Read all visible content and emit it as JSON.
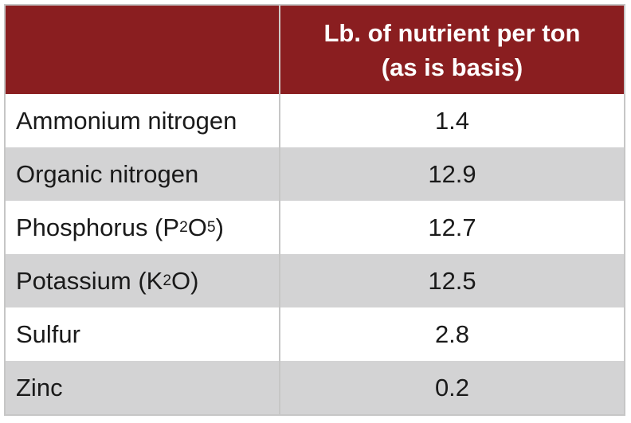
{
  "colors": {
    "header_bg": "#8a1e20",
    "alt_row_bg": "#d3d3d4",
    "border": "#c6c6c6",
    "header_text": "#ffffff",
    "body_text": "#1a1a1a"
  },
  "table": {
    "header": {
      "nutrient_col_label": "",
      "value_col_line1": "Lb. of nutrient per ton",
      "value_col_line2": "(as is basis)"
    },
    "rows": [
      {
        "nutrient": "Ammonium nitrogen",
        "value": "1.4"
      },
      {
        "nutrient": "Organic nitrogen",
        "value": "12.9"
      },
      {
        "nutrient": "Phosphorus (P₂O₅)",
        "value": "12.7"
      },
      {
        "nutrient": "Potassium (K₂O)",
        "value": "12.5"
      },
      {
        "nutrient": "Sulfur",
        "value": "2.8"
      },
      {
        "nutrient": "Zinc",
        "value": "0.2"
      }
    ]
  },
  "chart_data": {
    "type": "table",
    "title": "",
    "columns": [
      "",
      "Lb. of nutrient per ton (as is basis)"
    ],
    "rows": [
      [
        "Ammonium nitrogen",
        1.4
      ],
      [
        "Organic nitrogen",
        12.9
      ],
      [
        "Phosphorus (P2O5)",
        12.7
      ],
      [
        "Potassium (K2O)",
        12.5
      ],
      [
        "Sulfur",
        2.8
      ],
      [
        "Zinc",
        0.2
      ]
    ]
  }
}
